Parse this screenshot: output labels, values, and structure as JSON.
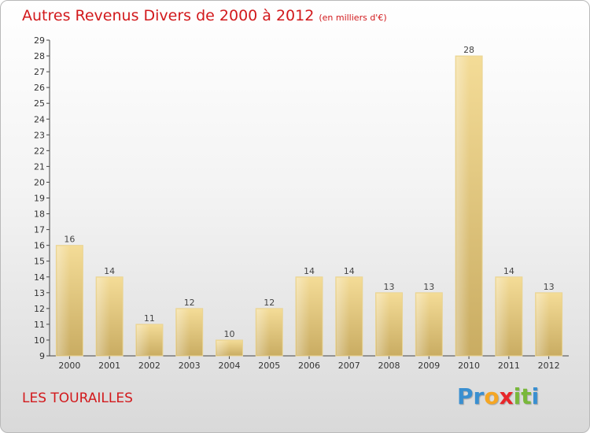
{
  "title": "Autres Revenus Divers de 2000 à 2012",
  "unit": "(en milliers d'€)",
  "commune": "LES TOURAILLES",
  "logo": {
    "letters": [
      "P",
      "r",
      "o",
      "x",
      "i",
      "t",
      "i"
    ],
    "colors": [
      "#3a8fd0",
      "#3a8fd0",
      "#f5a623",
      "#e8262a",
      "#79b83b",
      "#79b83b",
      "#3a8fd0"
    ]
  },
  "chart_data": {
    "type": "bar",
    "categories": [
      "2000",
      "2001",
      "2002",
      "2003",
      "2004",
      "2005",
      "2006",
      "2007",
      "2008",
      "2009",
      "2010",
      "2011",
      "2012"
    ],
    "values": [
      16,
      14,
      11,
      12,
      10,
      12,
      14,
      14,
      13,
      13,
      28,
      14,
      13
    ],
    "ylim": [
      9,
      29
    ],
    "yticks": [
      9,
      10,
      11,
      12,
      13,
      14,
      15,
      16,
      17,
      18,
      19,
      20,
      21,
      22,
      23,
      24,
      25,
      26,
      27,
      28,
      29
    ],
    "grid": false,
    "bar_color": "#e3c57f"
  }
}
